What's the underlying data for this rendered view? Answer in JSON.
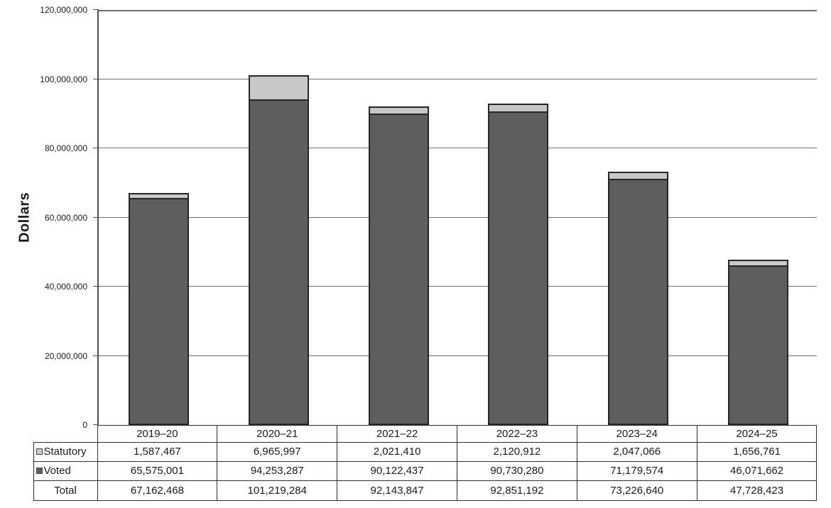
{
  "chart_data": {
    "type": "bar",
    "stacked": true,
    "title": "",
    "xlabel": "",
    "ylabel": "Dollars",
    "categories": [
      "2019–20",
      "2020–21",
      "2021–22",
      "2022–23",
      "2023–24",
      "2024–25"
    ],
    "series": [
      {
        "name": "Voted",
        "color": "#5e5e5e",
        "values": [
          65575001,
          94253287,
          90122437,
          90730280,
          71179574,
          46071662
        ]
      },
      {
        "name": "Statutory",
        "color": "#c8c8c8",
        "values": [
          1587467,
          6965997,
          2021410,
          2120912,
          2047066,
          1656761
        ]
      }
    ],
    "totals": [
      67162468,
      101219284,
      92143847,
      92851192,
      73226640,
      47728423
    ],
    "ylim": [
      0,
      120000000
    ],
    "ytick_step": 20000000,
    "ytick_labels": [
      "0",
      "20,000,000",
      "40,000,000",
      "60,000,000",
      "80,000,000",
      "100,000,000",
      "120,000,000"
    ],
    "grid": "horizontal",
    "legend_position": "table-left-column"
  },
  "table": {
    "year_header": [
      "2019–20",
      "2020–21",
      "2021–22",
      "2022–23",
      "2023–24",
      "2024–25"
    ],
    "rows": [
      {
        "label": "Statutory",
        "swatch_color": "#c8c8c8",
        "values": [
          "1,587,467",
          "6,965,997",
          "2,021,410",
          "2,120,912",
          "2,047,066",
          "1,656,761"
        ]
      },
      {
        "label": "Voted",
        "swatch_color": "#5e5e5e",
        "values": [
          "65,575,001",
          "94,253,287",
          "90,122,437",
          "90,730,280",
          "71,179,574",
          "46,071,662"
        ]
      },
      {
        "label": "Total",
        "swatch_color": null,
        "values": [
          "67,162,468",
          "101,219,284",
          "92,143,847",
          "92,851,192",
          "73,226,640",
          "47,728,423"
        ]
      }
    ]
  },
  "colors": {
    "voted_fill": "#5e5e5e",
    "statutory_fill": "#c8c8c8",
    "bar_border": "#262626",
    "gridline": "#6e6e6e",
    "axis": "#4f4f4f",
    "table_border": "#2e2e2e",
    "text": "#1a1a1a",
    "background": "#ffffff"
  }
}
